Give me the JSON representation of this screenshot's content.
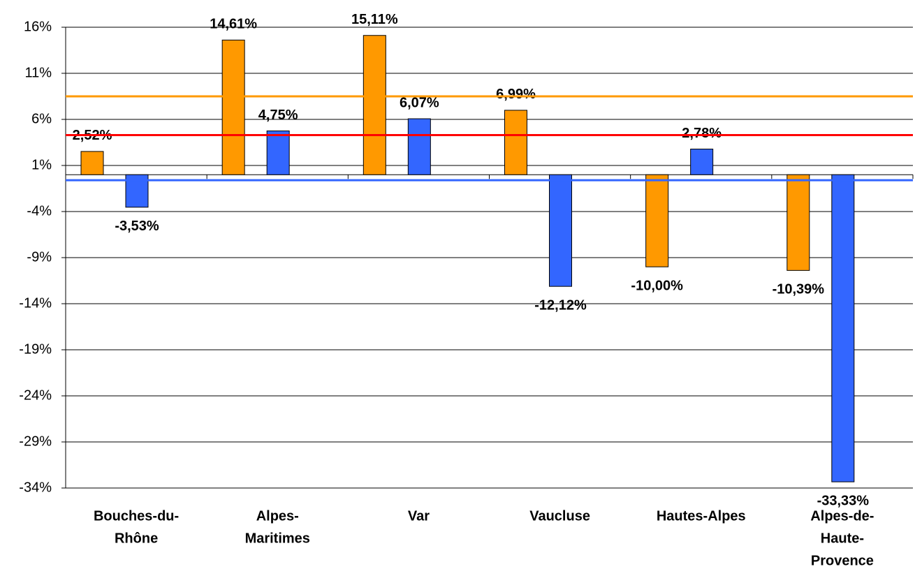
{
  "chart_data": {
    "type": "bar",
    "categories": [
      [
        "Bouches-du-",
        "Rhône"
      ],
      [
        "Alpes-",
        "Maritimes"
      ],
      [
        "Var"
      ],
      [
        "Vaucluse"
      ],
      [
        "Hautes-Alpes"
      ],
      [
        "Alpes-de-",
        "Haute-",
        "Provence"
      ]
    ],
    "series": [
      {
        "color": "#ff9900",
        "values": [
          2.52,
          14.61,
          15.11,
          6.99,
          -10.0,
          -10.39
        ],
        "value_labels": [
          "2,52%",
          "14,61%",
          "15,11%",
          "6,99%",
          "-10,00%",
          "-10,39%"
        ]
      },
      {
        "color": "#3366ff",
        "values": [
          -3.53,
          4.75,
          6.07,
          -12.12,
          2.78,
          -33.33
        ],
        "value_labels": [
          "-3,53%",
          "4,75%",
          "6,07%",
          "-12,12%",
          "2,78%",
          "-33,33%"
        ]
      }
    ],
    "reference_lines": [
      {
        "value": 8.5,
        "color": "#ff9900"
      },
      {
        "value": 4.3,
        "color": "#ff0000"
      },
      {
        "value": -0.6,
        "color": "#3366ff"
      }
    ],
    "ylim": [
      -34,
      16
    ],
    "yticks": [
      {
        "value": -34,
        "label": "-34%"
      },
      {
        "value": -29,
        "label": "-29%"
      },
      {
        "value": -24,
        "label": "-24%"
      },
      {
        "value": -19,
        "label": "-19%"
      },
      {
        "value": -14,
        "label": "-14%"
      },
      {
        "value": -9,
        "label": "-9%"
      },
      {
        "value": -4,
        "label": "-4%"
      },
      {
        "value": 1,
        "label": "1%"
      },
      {
        "value": 6,
        "label": "6%"
      },
      {
        "value": 11,
        "label": "11%"
      },
      {
        "value": 16,
        "label": "16%"
      }
    ],
    "grid": true
  }
}
